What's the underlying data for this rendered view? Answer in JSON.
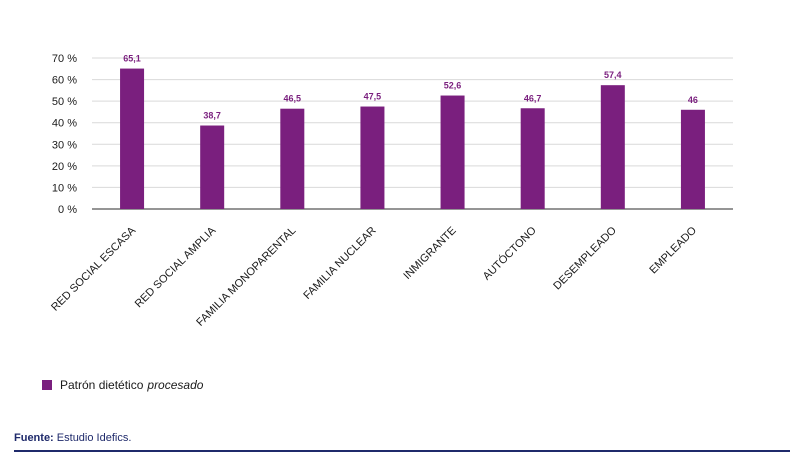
{
  "chart_data": {
    "type": "bar",
    "categories": [
      "RED SOCIAL ESCASA",
      "RED SOCIAL AMPLIA",
      "FAMILIA MONOPARENTAL",
      "FAMILIA NUCLEAR",
      "INMIGRANTE",
      "AUTÓCTONO",
      "DESEMPLEADO",
      "EMPLEADO"
    ],
    "series": [
      {
        "name": "Patrón dietético procesado",
        "values": [
          65.1,
          38.7,
          46.5,
          47.5,
          52.6,
          46.7,
          57.4,
          46
        ]
      }
    ],
    "value_labels": [
      "65,1",
      "38,7",
      "46,5",
      "47,5",
      "52,6",
      "46,7",
      "57,4",
      "46"
    ],
    "y_ticks": [
      "0 %",
      "10 %",
      "20 %",
      "30 %",
      "40 %",
      "50 %",
      "60 %",
      "70 %"
    ],
    "ylim": [
      0,
      70
    ],
    "grid": true,
    "legend_position": "bottom-left",
    "bar_color": "#7a1f7e"
  },
  "legend": {
    "prefix": "Patrón dietético",
    "italic": "procesado"
  },
  "source": {
    "label": "Fuente:",
    "text": "Estudio Idefics."
  }
}
